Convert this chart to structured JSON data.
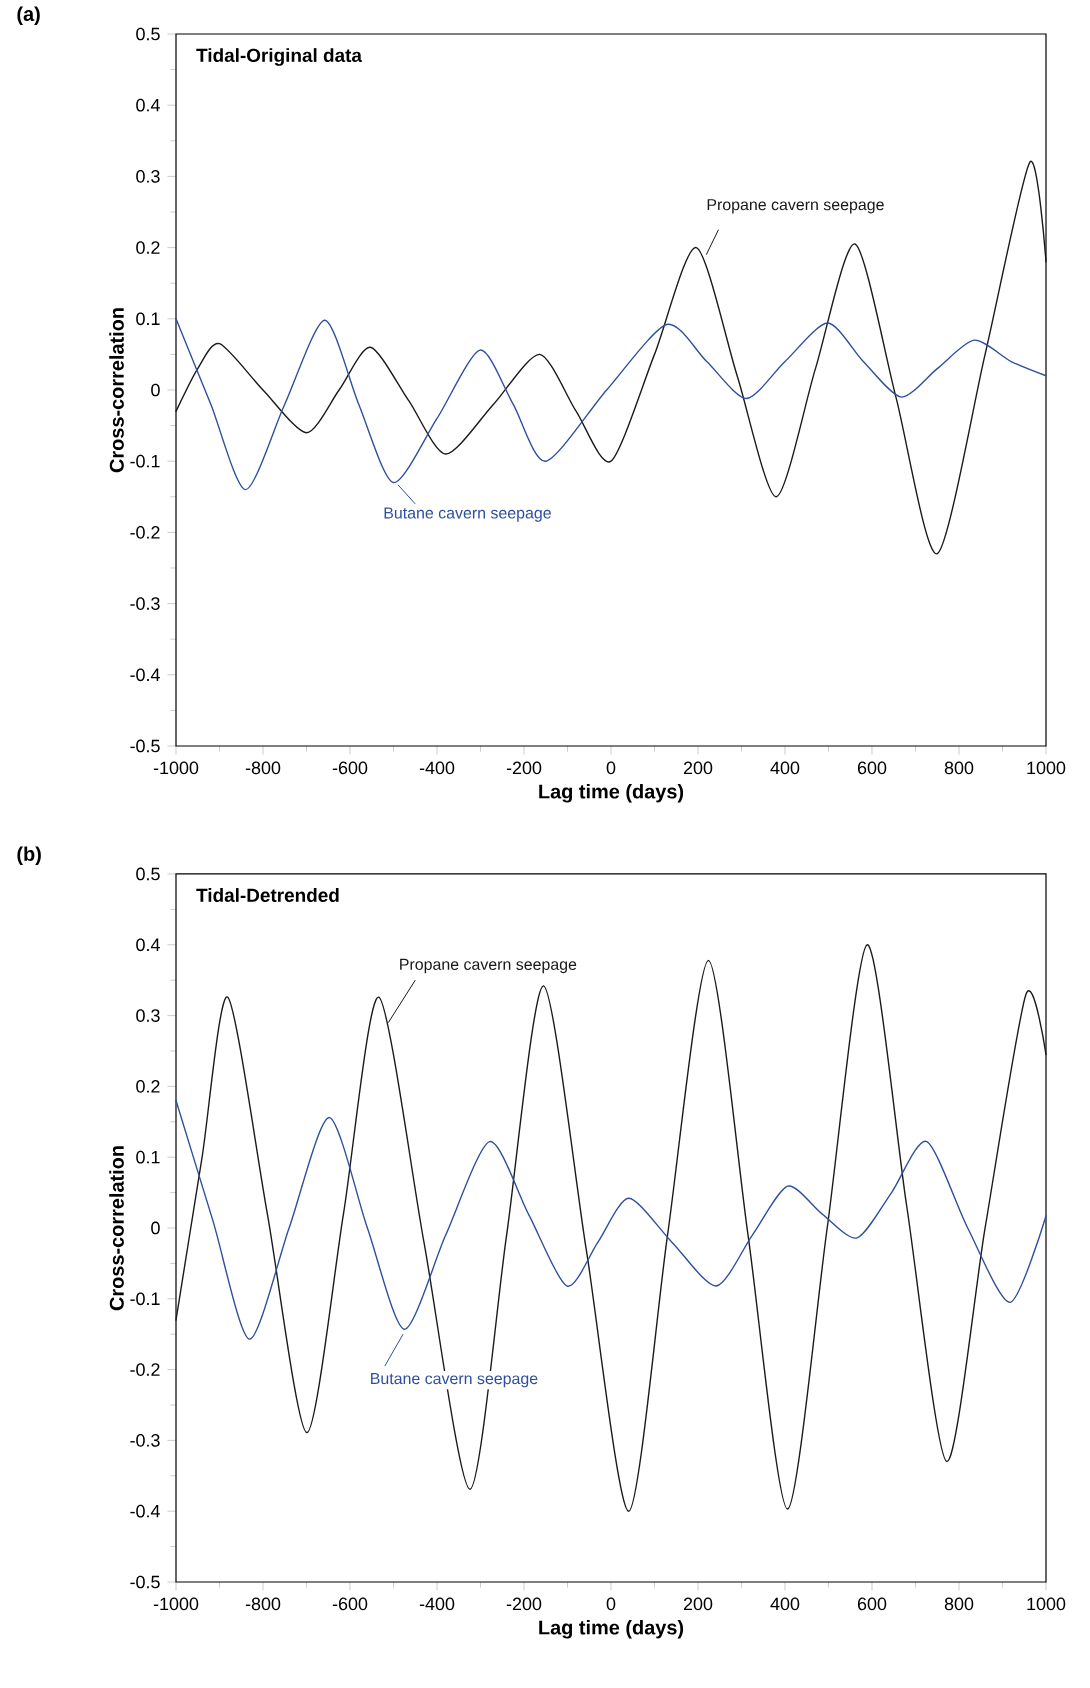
{
  "chart_data": [
    {
      "type": "line",
      "title": "(a)",
      "subtitle": "Tidal-Original data",
      "xlabel": "Lag time (days)",
      "ylabel": "Cross-correlation",
      "xlim": [
        -1000,
        1000
      ],
      "ylim": [
        -0.5,
        0.5
      ],
      "xticks": [
        -1000,
        -800,
        -600,
        -400,
        -200,
        0,
        200,
        400,
        600,
        800,
        1000
      ],
      "yticks": [
        -0.5,
        -0.4,
        -0.3,
        -0.2,
        -0.1,
        0,
        0.1,
        0.2,
        0.3,
        0.4,
        0.5
      ],
      "series": [
        {
          "name": "Propane cavern seepage",
          "color": "#1a1a1a",
          "x": [
            -1000,
            -950,
            -900,
            -800,
            -700,
            -625,
            -553,
            -465,
            -380,
            -270,
            -164,
            -80,
            0,
            100,
            196,
            290,
            380,
            470,
            561,
            655,
            750,
            860,
            963,
            1000
          ],
          "values": [
            -0.03,
            0.03,
            0.065,
            0.0,
            -0.06,
            0.0,
            0.06,
            -0.015,
            -0.09,
            -0.02,
            0.05,
            -0.03,
            -0.1,
            0.05,
            0.2,
            0.02,
            -0.15,
            0.03,
            0.205,
            -0.01,
            -0.23,
            0.05,
            0.32,
            0.18
          ]
        },
        {
          "name": "Butane cavern seepage",
          "color": "#2e4f9e",
          "x": [
            -1000,
            -920,
            -840,
            -750,
            -658,
            -580,
            -500,
            -400,
            -301,
            -225,
            -150,
            -10,
            128,
            220,
            311,
            400,
            498,
            580,
            667,
            750,
            835,
            920,
            1000
          ],
          "values": [
            0.1,
            -0.02,
            -0.14,
            -0.02,
            0.098,
            -0.02,
            -0.13,
            -0.04,
            0.056,
            -0.02,
            -0.1,
            0.0,
            0.092,
            0.04,
            -0.012,
            0.04,
            0.094,
            0.04,
            -0.01,
            0.03,
            0.07,
            0.04,
            0.02
          ]
        }
      ]
    },
    {
      "type": "line",
      "title": "(b)",
      "subtitle": "Tidal-Detrended",
      "xlabel": "Lag time (days)",
      "ylabel": "Cross-correlation",
      "xlim": [
        -1000,
        1000
      ],
      "ylim": [
        -0.5,
        0.5
      ],
      "xticks": [
        -1000,
        -800,
        -600,
        -400,
        -200,
        0,
        200,
        400,
        600,
        800,
        1000
      ],
      "yticks": [
        -0.5,
        -0.4,
        -0.3,
        -0.2,
        -0.1,
        0,
        0.1,
        0.2,
        0.3,
        0.4,
        0.5
      ],
      "series": [
        {
          "name": "Propane cavern seepage",
          "color": "#1a1a1a",
          "x": [
            -1000,
            -940,
            -881,
            -790,
            -699,
            -615,
            -534,
            -430,
            -324,
            -240,
            -155,
            -57,
            41,
            130,
            224,
            315,
            406,
            497,
            589,
            680,
            772,
            860,
            954,
            1000
          ],
          "values": [
            -0.13,
            0.1,
            0.326,
            0.02,
            -0.289,
            0.02,
            0.326,
            -0.02,
            -0.369,
            -0.01,
            0.342,
            -0.03,
            -0.4,
            -0.01,
            0.378,
            -0.01,
            -0.397,
            0.0,
            0.4,
            0.03,
            -0.33,
            0.0,
            0.33,
            0.245
          ]
        },
        {
          "name": "Butane cavern seepage",
          "color": "#2e4f9e",
          "x": [
            -1000,
            -915,
            -831,
            -740,
            -648,
            -560,
            -475,
            -380,
            -279,
            -190,
            -101,
            -30,
            41,
            140,
            242,
            325,
            406,
            485,
            566,
            645,
            726,
            820,
            918,
            1000
          ],
          "values": [
            0.18,
            0.01,
            -0.157,
            0.0,
            0.156,
            0.0,
            -0.143,
            -0.01,
            0.122,
            0.02,
            -0.082,
            -0.02,
            0.042,
            -0.02,
            -0.082,
            -0.01,
            0.059,
            0.02,
            -0.014,
            0.05,
            0.122,
            0.0,
            -0.105,
            0.017
          ]
        }
      ]
    }
  ]
}
